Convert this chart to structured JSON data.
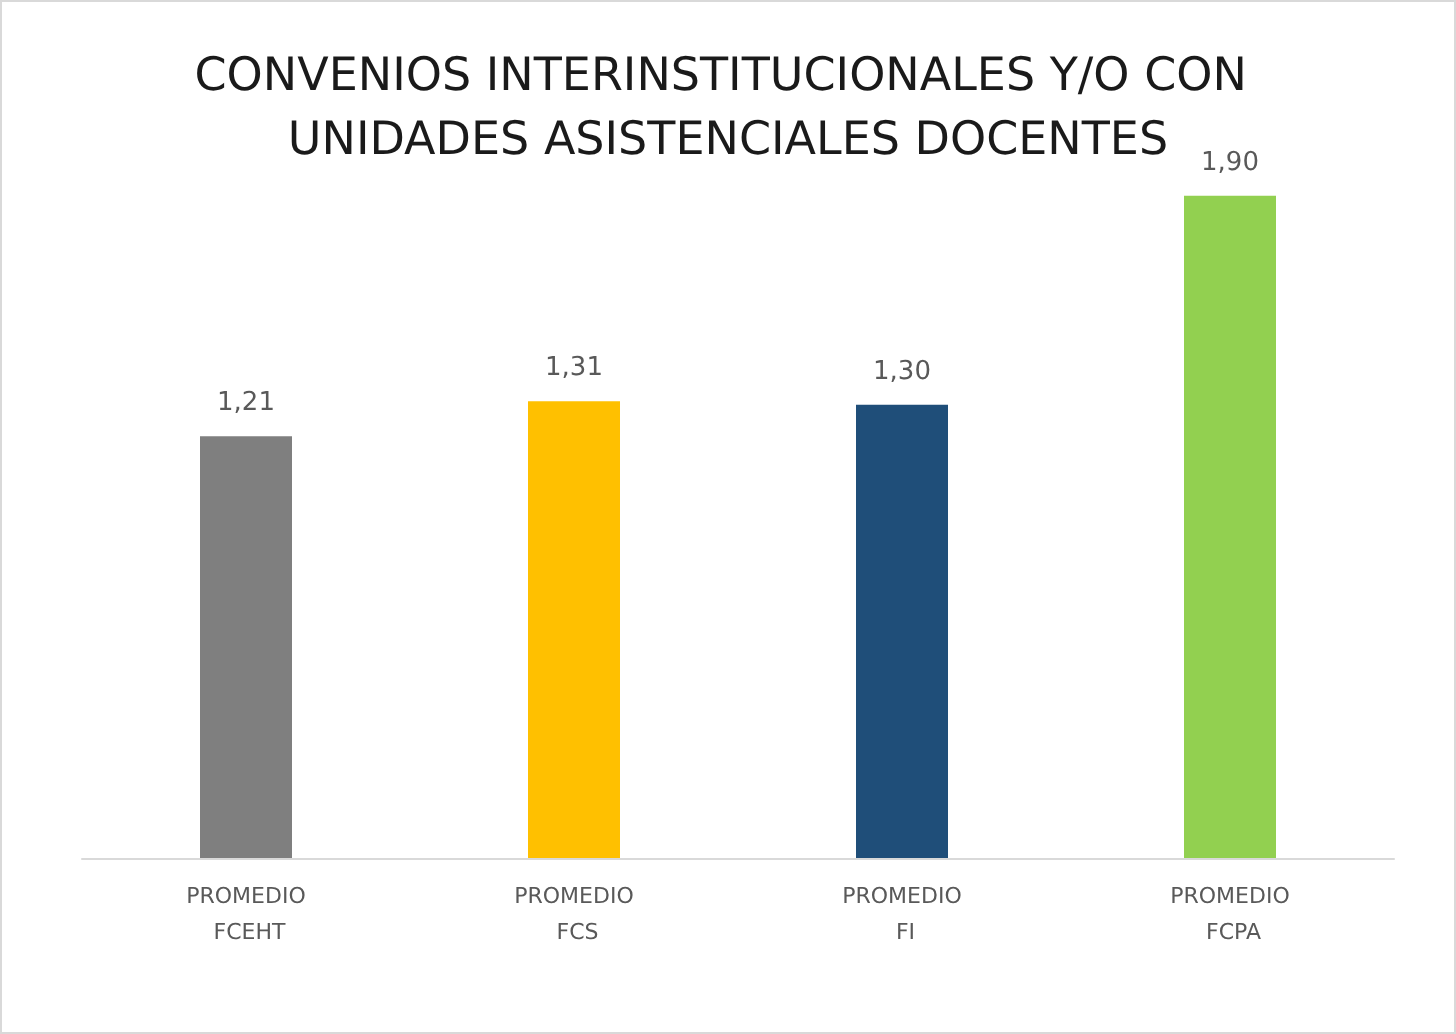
{
  "chart_data": {
    "type": "bar",
    "title": "CONVENIOS INTERINSTITUCIONALES Y/O CON UNIDADES ASISTENCIALES DOCENTES",
    "categories": [
      "PROMEDIO FCEHT",
      "PROMEDIO FCS",
      "PROMEDIO FI",
      "PROMEDIO FCPA"
    ],
    "values": [
      1.21,
      1.31,
      1.3,
      1.9
    ],
    "colors": [
      "#7f7f7f",
      "#ffc000",
      "#1f4e79",
      "#92d050"
    ],
    "value_labels": [
      "1,21",
      "1,31",
      "1,30",
      "1,90"
    ],
    "tick_labels": "x"
  }
}
